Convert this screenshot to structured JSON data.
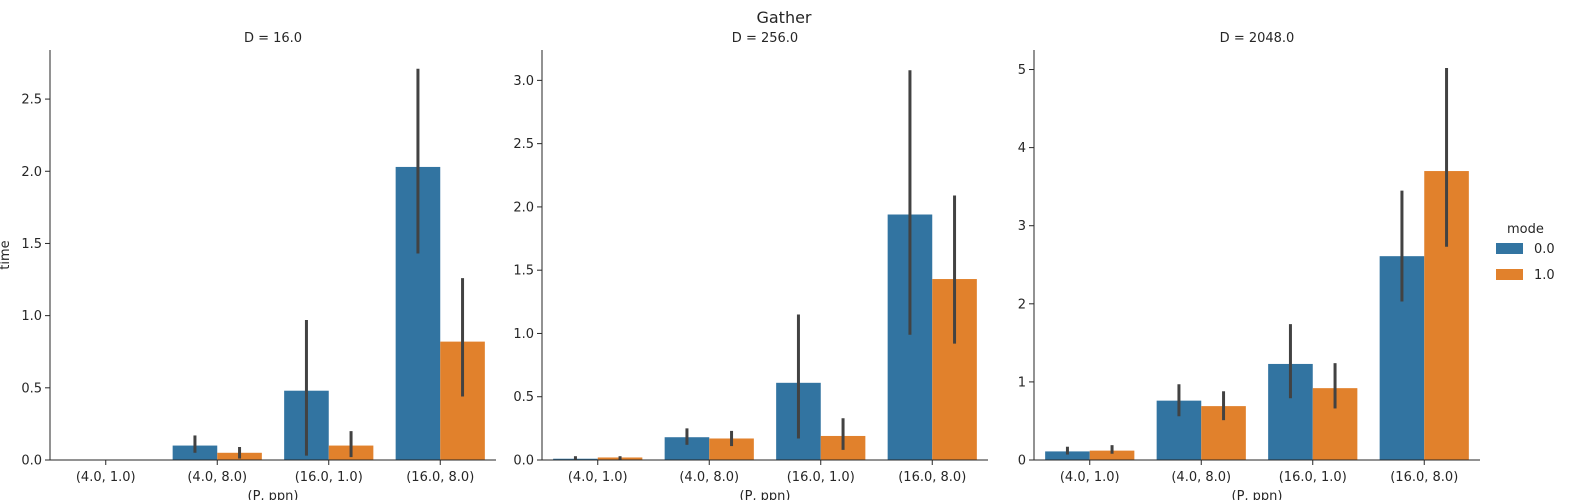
{
  "figure": {
    "suptitle": "Gather"
  },
  "legend": {
    "title": "mode",
    "placement": "right"
  },
  "colors": {
    "mode_0": "#3274a1",
    "mode_1": "#e1812c",
    "errbar": "#424242",
    "axis": "#262626"
  },
  "chart_data": [
    {
      "type": "bar",
      "title": "D = 16.0",
      "xlabel": "(P, ppn)",
      "ylabel": "time",
      "categories": [
        "(4.0, 1.0)",
        "(4.0, 8.0)",
        "(16.0, 1.0)",
        "(16.0, 8.0)"
      ],
      "ylim": [
        0,
        2.84
      ],
      "yticks": [
        0.0,
        0.5,
        1.0,
        1.5,
        2.0,
        2.5
      ],
      "ytick_labels": [
        "0.0",
        "0.5",
        "1.0",
        "1.5",
        "2.0",
        "2.5"
      ],
      "series": [
        {
          "name": "0.0",
          "values": [
            0.0,
            0.1,
            0.48,
            2.03
          ],
          "err_low": [
            0.0,
            0.05,
            0.03,
            1.43
          ],
          "err_high": [
            0.0,
            0.17,
            0.97,
            2.71
          ]
        },
        {
          "name": "1.0",
          "values": [
            0.0,
            0.05,
            0.1,
            0.82
          ],
          "err_low": [
            0.0,
            0.01,
            0.02,
            0.44
          ],
          "err_high": [
            0.0,
            0.09,
            0.2,
            1.26
          ]
        }
      ]
    },
    {
      "type": "bar",
      "title": "D = 256.0",
      "xlabel": "(P, ppn)",
      "ylabel": "",
      "categories": [
        "(4.0, 1.0)",
        "(4.0, 8.0)",
        "(16.0, 1.0)",
        "(16.0, 8.0)"
      ],
      "ylim": [
        0,
        3.24
      ],
      "yticks": [
        0.0,
        0.5,
        1.0,
        1.5,
        2.0,
        2.5,
        3.0
      ],
      "ytick_labels": [
        "0.0",
        "0.5",
        "1.0",
        "1.5",
        "2.0",
        "2.5",
        "3.0"
      ],
      "series": [
        {
          "name": "0.0",
          "values": [
            0.01,
            0.18,
            0.61,
            1.94
          ],
          "err_low": [
            0.0,
            0.12,
            0.17,
            0.99
          ],
          "err_high": [
            0.03,
            0.25,
            1.15,
            3.08
          ]
        },
        {
          "name": "1.0",
          "values": [
            0.02,
            0.17,
            0.19,
            1.43
          ],
          "err_low": [
            0.0,
            0.11,
            0.08,
            0.92
          ],
          "err_high": [
            0.03,
            0.23,
            0.33,
            2.09
          ]
        }
      ]
    },
    {
      "type": "bar",
      "title": "D = 2048.0",
      "xlabel": "(P, ppn)",
      "ylabel": "",
      "categories": [
        "(4.0, 1.0)",
        "(4.0, 8.0)",
        "(16.0, 1.0)",
        "(16.0, 8.0)"
      ],
      "ylim": [
        0,
        5.25
      ],
      "yticks": [
        0,
        1,
        2,
        3,
        4,
        5
      ],
      "ytick_labels": [
        "0",
        "1",
        "2",
        "3",
        "4",
        "5"
      ],
      "series": [
        {
          "name": "0.0",
          "values": [
            0.11,
            0.76,
            1.23,
            2.61
          ],
          "err_low": [
            0.07,
            0.56,
            0.79,
            2.03
          ],
          "err_high": [
            0.17,
            0.97,
            1.74,
            3.45
          ]
        },
        {
          "name": "1.0",
          "values": [
            0.12,
            0.69,
            0.92,
            3.7
          ],
          "err_low": [
            0.08,
            0.51,
            0.66,
            2.73
          ],
          "err_high": [
            0.19,
            0.88,
            1.24,
            5.02
          ]
        }
      ]
    }
  ]
}
